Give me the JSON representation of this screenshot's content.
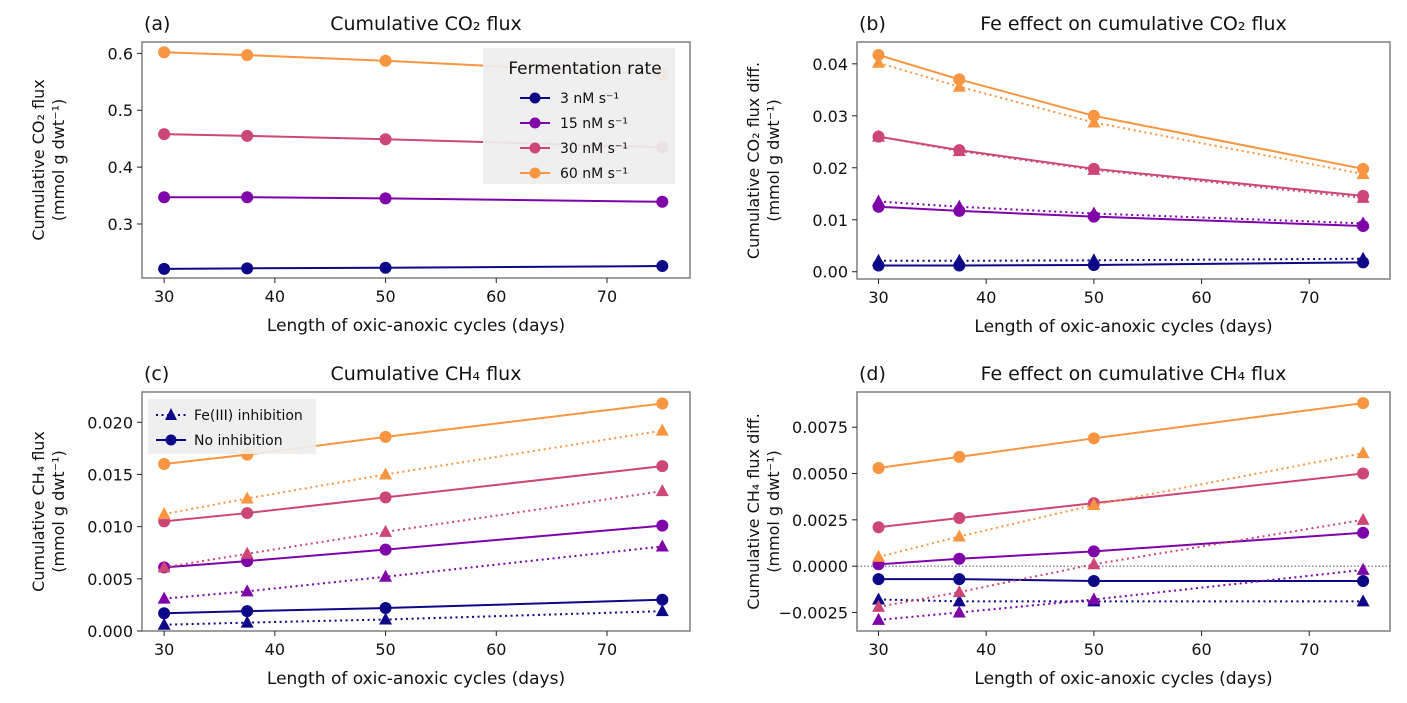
{
  "chart_data": [
    {
      "type": "line",
      "panel": "(a)",
      "title": "Cumulative CO₂ flux",
      "xlabel": "Length of oxic-anoxic cycles (days)",
      "ylabel": [
        "Cumulative CO₂ flux",
        "(mmol g dwt⁻¹)"
      ],
      "xlim": [
        28,
        77.5
      ],
      "ylim": [
        0.205,
        0.62
      ],
      "xticks": [
        30,
        40,
        50,
        60,
        70
      ],
      "yticks": [
        0.3,
        0.4,
        0.5,
        0.6
      ],
      "ytick_labels": [
        "0.3",
        "0.4",
        "0.5",
        "0.6"
      ],
      "x": [
        30,
        37.5,
        50,
        75
      ],
      "legend": {
        "title": "Fermentation rate",
        "position": "top-right"
      },
      "series": [
        {
          "name": "3 nM s⁻¹",
          "color": "#0d0887",
          "style": "solid",
          "marker": "circle",
          "values": [
            0.221,
            0.222,
            0.223,
            0.226
          ]
        },
        {
          "name": "15 nM s⁻¹",
          "color": "#7e03a8",
          "style": "solid",
          "marker": "circle",
          "values": [
            0.347,
            0.347,
            0.345,
            0.339
          ]
        },
        {
          "name": "30 nM s⁻¹",
          "color": "#cc4778",
          "style": "solid",
          "marker": "circle",
          "values": [
            0.458,
            0.455,
            0.449,
            0.435
          ]
        },
        {
          "name": "60 nM s⁻¹",
          "color": "#f89540",
          "style": "solid",
          "marker": "circle",
          "values": [
            0.602,
            0.597,
            0.587,
            0.563
          ]
        }
      ]
    },
    {
      "type": "line",
      "panel": "(b)",
      "title": "Fe effect on cumulative CO₂ flux",
      "xlabel": "Length of oxic-anoxic cycles (days)",
      "ylabel": [
        "Cumulative CO₂ flux diff.",
        "(mmol g dwt⁻¹)"
      ],
      "xlim": [
        28,
        77.5
      ],
      "ylim": [
        -0.0014,
        0.0442
      ],
      "xticks": [
        30,
        40,
        50,
        60,
        70
      ],
      "yticks": [
        0.0,
        0.01,
        0.02,
        0.03,
        0.04
      ],
      "ytick_labels": [
        "0.00",
        "0.01",
        "0.02",
        "0.03",
        "0.04"
      ],
      "x": [
        30,
        37.5,
        50,
        75
      ],
      "series": [
        {
          "name": "3 nM s⁻¹ Fe(III) inhibition",
          "color": "#0d0887",
          "style": "dotted",
          "marker": "triangle",
          "values": [
            0.0021,
            0.0021,
            0.0022,
            0.0025
          ]
        },
        {
          "name": "3 nM s⁻¹ No inhibition",
          "color": "#0d0887",
          "style": "solid",
          "marker": "circle",
          "values": [
            0.0012,
            0.0012,
            0.0013,
            0.0018
          ]
        },
        {
          "name": "15 nM s⁻¹ Fe(III) inhibition",
          "color": "#7e03a8",
          "style": "dotted",
          "marker": "triangle",
          "values": [
            0.0135,
            0.0125,
            0.0112,
            0.0093
          ]
        },
        {
          "name": "15 nM s⁻¹ No inhibition",
          "color": "#7e03a8",
          "style": "solid",
          "marker": "circle",
          "values": [
            0.0125,
            0.0117,
            0.0106,
            0.0088
          ]
        },
        {
          "name": "30 nM s⁻¹ Fe(III) inhibition",
          "color": "#cc4778",
          "style": "dotted",
          "marker": "triangle",
          "values": [
            0.026,
            0.0232,
            0.0196,
            0.0142
          ]
        },
        {
          "name": "30 nM s⁻¹ No inhibition",
          "color": "#cc4778",
          "style": "solid",
          "marker": "circle",
          "values": [
            0.026,
            0.0234,
            0.0198,
            0.0146
          ]
        },
        {
          "name": "60 nM s⁻¹ Fe(III) inhibition",
          "color": "#f89540",
          "style": "dotted",
          "marker": "triangle",
          "values": [
            0.0402,
            0.0356,
            0.0287,
            0.0188
          ]
        },
        {
          "name": "60 nM s⁻¹ No inhibition",
          "color": "#f89540",
          "style": "solid",
          "marker": "circle",
          "values": [
            0.0417,
            0.037,
            0.03,
            0.0198
          ]
        }
      ]
    },
    {
      "type": "line",
      "panel": "(c)",
      "title": "Cumulative CH₄ flux",
      "xlabel": "Length of oxic-anoxic cycles (days)",
      "ylabel": [
        "Cumulative CH₄ flux",
        "(mmol g dwt⁻¹)"
      ],
      "xlim": [
        28,
        77.5
      ],
      "ylim": [
        0.0,
        0.0229
      ],
      "xticks": [
        30,
        40,
        50,
        60,
        70
      ],
      "yticks": [
        0.0,
        0.005,
        0.01,
        0.015,
        0.02
      ],
      "ytick_labels": [
        "0.000",
        "0.005",
        "0.010",
        "0.015",
        "0.020"
      ],
      "x": [
        30,
        37.5,
        50,
        75
      ],
      "legend": {
        "position": "top-left",
        "entries": [
          {
            "label": "Fe(III) inhibition",
            "style": "dotted",
            "marker": "triangle"
          },
          {
            "label": "No inhibition",
            "style": "solid",
            "marker": "circle"
          }
        ]
      },
      "series": [
        {
          "name": "3 nM s⁻¹ Fe(III) inhibition",
          "color": "#0d0887",
          "style": "dotted",
          "marker": "triangle",
          "values": [
            0.0006,
            0.0008,
            0.0011,
            0.0019
          ]
        },
        {
          "name": "3 nM s⁻¹ No inhibition",
          "color": "#0d0887",
          "style": "solid",
          "marker": "circle",
          "values": [
            0.0017,
            0.0019,
            0.0022,
            0.003
          ]
        },
        {
          "name": "15 nM s⁻¹ Fe(III) inhibition",
          "color": "#7e03a8",
          "style": "dotted",
          "marker": "triangle",
          "values": [
            0.0031,
            0.0038,
            0.0052,
            0.0081
          ]
        },
        {
          "name": "15 nM s⁻¹ No inhibition",
          "color": "#7e03a8",
          "style": "solid",
          "marker": "circle",
          "values": [
            0.0061,
            0.0067,
            0.0078,
            0.0101
          ]
        },
        {
          "name": "30 nM s⁻¹ Fe(III) inhibition",
          "color": "#cc4778",
          "style": "dotted",
          "marker": "triangle",
          "values": [
            0.0061,
            0.0074,
            0.0095,
            0.0134
          ]
        },
        {
          "name": "30 nM s⁻¹ No inhibition",
          "color": "#cc4778",
          "style": "solid",
          "marker": "circle",
          "values": [
            0.0105,
            0.0113,
            0.0128,
            0.0158
          ]
        },
        {
          "name": "60 nM s⁻¹ Fe(III) inhibition",
          "color": "#f89540",
          "style": "dotted",
          "marker": "triangle",
          "values": [
            0.0112,
            0.0127,
            0.015,
            0.0192
          ]
        },
        {
          "name": "60 nM s⁻¹ No inhibition",
          "color": "#f89540",
          "style": "solid",
          "marker": "circle",
          "values": [
            0.016,
            0.0169,
            0.0186,
            0.0218
          ]
        }
      ]
    },
    {
      "type": "line",
      "panel": "(d)",
      "title": "Fe effect on cumulative CH₄ flux",
      "xlabel": "Length of oxic-anoxic cycles (days)",
      "ylabel": [
        "Cumulative CH₄ flux diff.",
        "(mmol g dwt⁻¹)"
      ],
      "xlim": [
        28,
        77.5
      ],
      "ylim": [
        -0.0035,
        0.0094
      ],
      "xticks": [
        30,
        40,
        50,
        60,
        70
      ],
      "yticks": [
        -0.0025,
        0.0,
        0.0025,
        0.005,
        0.0075
      ],
      "ytick_labels": [
        "−0.0025",
        "0.0000",
        "0.0025",
        "0.0050",
        "0.0075"
      ],
      "zero_line": true,
      "x": [
        30,
        37.5,
        50,
        75
      ],
      "series": [
        {
          "name": "3 nM s⁻¹ Fe(III) inhibition",
          "color": "#0d0887",
          "style": "dotted",
          "marker": "triangle",
          "values": [
            -0.0018,
            -0.0019,
            -0.0019,
            -0.0019
          ]
        },
        {
          "name": "3 nM s⁻¹ No inhibition",
          "color": "#0d0887",
          "style": "solid",
          "marker": "circle",
          "values": [
            -0.0007,
            -0.0007,
            -0.0008,
            -0.0008
          ]
        },
        {
          "name": "15 nM s⁻¹ Fe(III) inhibition",
          "color": "#7e03a8",
          "style": "dotted",
          "marker": "triangle",
          "values": [
            -0.0029,
            -0.0025,
            -0.0018,
            -0.0002
          ]
        },
        {
          "name": "15 nM s⁻¹ No inhibition",
          "color": "#7e03a8",
          "style": "solid",
          "marker": "circle",
          "values": [
            0.0001,
            0.0004,
            0.0008,
            0.0018
          ]
        },
        {
          "name": "30 nM s⁻¹ Fe(III) inhibition",
          "color": "#cc4778",
          "style": "dotted",
          "marker": "triangle",
          "values": [
            -0.0022,
            -0.0014,
            0.0001,
            0.0025
          ]
        },
        {
          "name": "30 nM s⁻¹ No inhibition",
          "color": "#cc4778",
          "style": "solid",
          "marker": "circle",
          "values": [
            0.0021,
            0.0026,
            0.0034,
            0.005
          ]
        },
        {
          "name": "60 nM s⁻¹ Fe(III) inhibition",
          "color": "#f89540",
          "style": "dotted",
          "marker": "triangle",
          "values": [
            0.0005,
            0.0016,
            0.0033,
            0.0061
          ]
        },
        {
          "name": "60 nM s⁻¹ No inhibition",
          "color": "#f89540",
          "style": "solid",
          "marker": "circle",
          "values": [
            0.0053,
            0.0059,
            0.0069,
            0.0088
          ]
        }
      ]
    }
  ]
}
